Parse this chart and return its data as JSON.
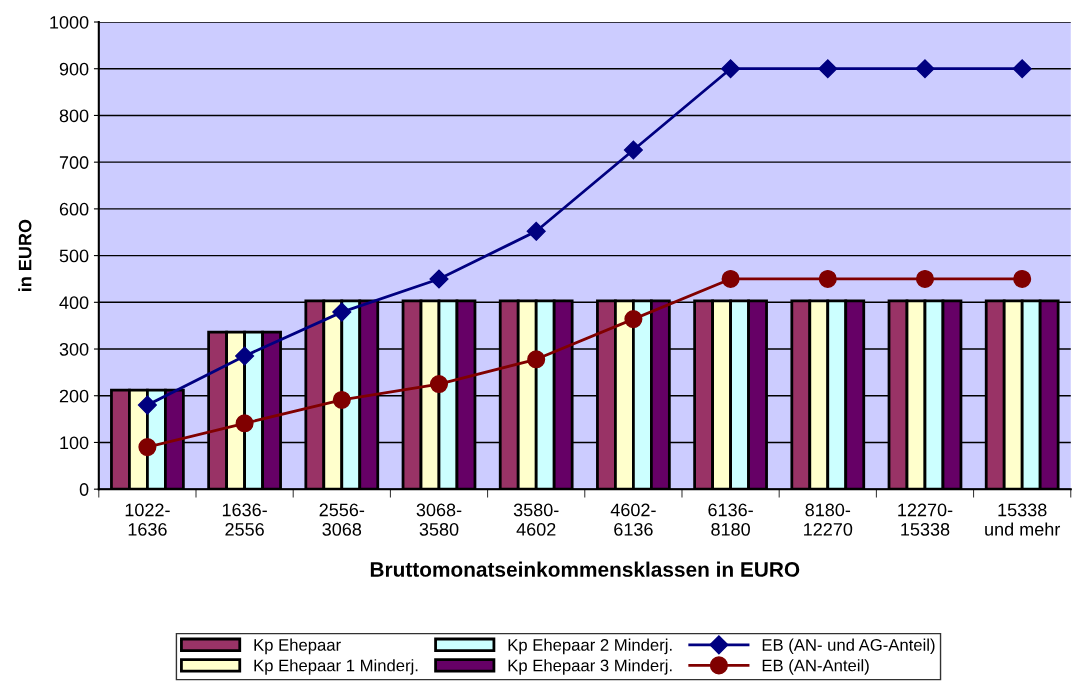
{
  "chart_data": {
    "type": "bar",
    "xlabel": "Bruttomonatseinkommensklassen in EURO",
    "ylabel": "in EURO",
    "categories": [
      "1022-\n1636",
      "1636-\n2556",
      "2556-\n3068",
      "3068-\n3580",
      "3580-\n4602",
      "4602-\n6136",
      "6136-\n8180",
      "8180-\n12270",
      "12270-\n15338",
      "15338\nund mehr"
    ],
    "series": [
      {
        "name": "Kp Ehepaar",
        "color": "#993366",
        "values": [
          212,
          336,
          403,
          403,
          403,
          403,
          403,
          403,
          403,
          403
        ]
      },
      {
        "name": "Kp Ehepaar 1 Minderj.",
        "color": "#ffffcc",
        "values": [
          212,
          336,
          403,
          403,
          403,
          403,
          403,
          403,
          403,
          403
        ]
      },
      {
        "name": "Kp Ehepaar 2 Minderj.",
        "color": "#ccffff",
        "values": [
          212,
          336,
          403,
          403,
          403,
          403,
          403,
          403,
          403,
          403
        ]
      },
      {
        "name": "Kp Ehepaar 3 Minderj.",
        "color": "#660066",
        "values": [
          212,
          336,
          403,
          403,
          403,
          403,
          403,
          403,
          403,
          403
        ]
      },
      {
        "name": "EB (AN- und AG-Anteil)",
        "type": "line",
        "marker": "diamond",
        "color": "#000080",
        "values": [
          180,
          285,
          379,
          450,
          552,
          726,
          900,
          900,
          900,
          900
        ]
      },
      {
        "name": "EB (AN-Anteil)",
        "type": "line",
        "marker": "circle",
        "color": "#800000",
        "values": [
          90,
          141,
          191,
          225,
          278,
          364,
          450,
          450,
          450,
          450
        ]
      }
    ],
    "ylim": [
      0,
      1000
    ],
    "yticks": [
      0,
      100,
      200,
      300,
      400,
      500,
      600,
      700,
      800,
      900,
      1000
    ],
    "grid": "y",
    "legend": "bottom"
  }
}
